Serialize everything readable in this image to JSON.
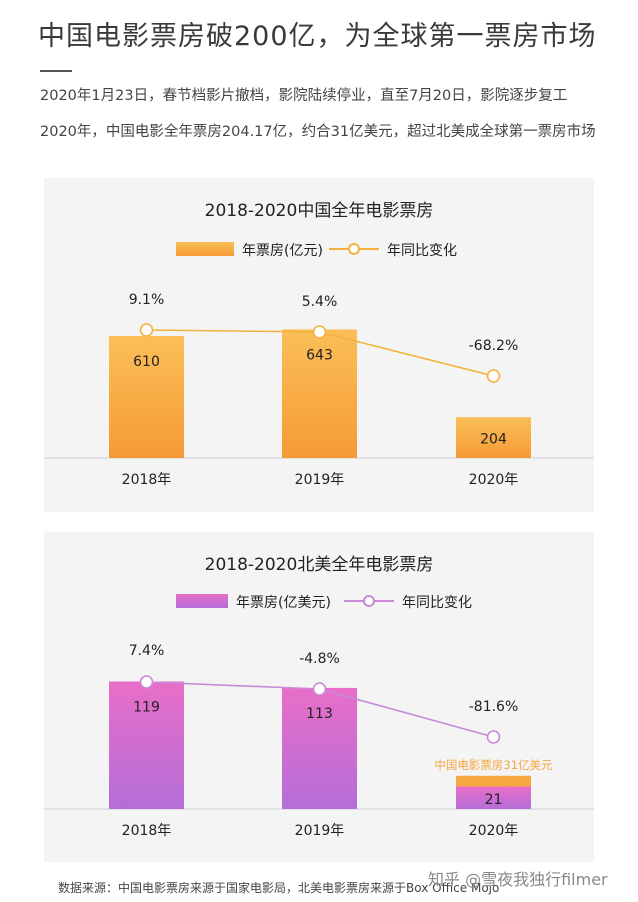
{
  "headline": "中国电影票房破200亿，为全球第一票房市场",
  "paragraph1": "2020年1月23日，春节档影片撤档，影院陆续停业，直至7月20日，影院逐步复工",
  "paragraph2": "2020年，中国电影全年票房204.17亿，约合31亿美元，超过北美成全球第一票房市场",
  "source_note": "数据来源：中国电影票房来源于国家电影局，北美电影票房来源于Box Office Mojo",
  "watermark": "知乎 @雪夜我独行filmer",
  "chart_data": [
    {
      "type": "bar",
      "title": "2018-2020中国全年电影票房",
      "categories": [
        "2018年",
        "2019年",
        "2020年"
      ],
      "series": [
        {
          "name": "年票房(亿元)",
          "values": [
            610,
            643,
            204
          ]
        },
        {
          "name": "年同比变化",
          "type": "line",
          "values": [
            9.1,
            5.4,
            -68.2
          ],
          "labels": [
            "9.1%",
            "5.4%",
            "-68.2%"
          ]
        }
      ],
      "legend_position": "top",
      "grid": false,
      "colors": {
        "bar_top": "#fbbf57",
        "bar_bottom": "#f59a36",
        "line": "#f5b13d"
      }
    },
    {
      "type": "bar",
      "title": "2018-2020北美全年电影票房",
      "categories": [
        "2018年",
        "2019年",
        "2020年"
      ],
      "series": [
        {
          "name": "年票房(亿美元)",
          "values": [
            119,
            113,
            21
          ]
        },
        {
          "name": "年同比变化",
          "type": "line",
          "values": [
            7.4,
            -4.8,
            -81.6
          ],
          "labels": [
            "7.4%",
            "-4.8%",
            "-81.6%"
          ]
        }
      ],
      "annotations": [
        {
          "text": "中国电影票房31亿美元",
          "category": "2020年",
          "value": 31
        }
      ],
      "legend_position": "top",
      "grid": false,
      "colors": {
        "bar_top": "#e86ec8",
        "bar_bottom": "#b46ed8",
        "line": "#c78ad6",
        "annotation": "#f5a742"
      }
    }
  ]
}
